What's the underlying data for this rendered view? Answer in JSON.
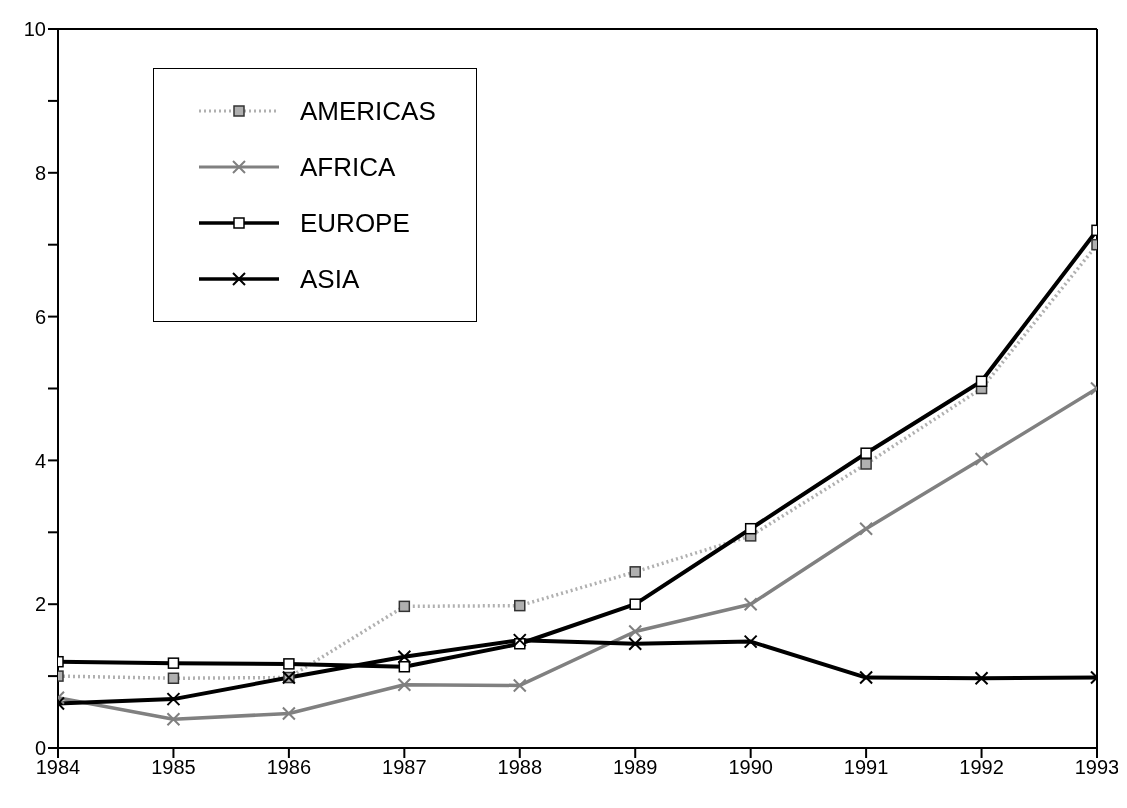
{
  "chart_data": {
    "type": "line",
    "x": [
      1984,
      1985,
      1986,
      1987,
      1988,
      1989,
      1990,
      1991,
      1992,
      1993
    ],
    "series": [
      {
        "name": "AMERICAS",
        "color": "#b0b0b0",
        "marker": "square",
        "line_style": "dotted",
        "values": [
          1.0,
          0.97,
          0.98,
          1.97,
          1.98,
          2.45,
          2.95,
          3.95,
          5.0,
          7.0
        ]
      },
      {
        "name": "AFRICA",
        "color": "#808080",
        "marker": "cross",
        "values": [
          0.7,
          0.4,
          0.48,
          0.88,
          0.87,
          1.62,
          2.0,
          3.05,
          4.02,
          5.0
        ]
      },
      {
        "name": "EUROPE",
        "color": "#000000",
        "marker": "square",
        "values": [
          1.2,
          1.18,
          1.17,
          1.13,
          1.45,
          2.0,
          3.05,
          4.1,
          5.1,
          7.2
        ]
      },
      {
        "name": "ASIA",
        "color": "#000000",
        "marker": "cross",
        "values": [
          0.62,
          0.68,
          0.98,
          1.27,
          1.5,
          1.45,
          1.48,
          0.98,
          0.97,
          0.98
        ]
      }
    ],
    "xlim": [
      1984,
      1993
    ],
    "xticks": [
      1984,
      1985,
      1986,
      1987,
      1988,
      1989,
      1990,
      1991,
      1992,
      1993
    ],
    "ylim": [
      0,
      10
    ],
    "yticks": [
      0,
      {
        "value": 1,
        "label": null
      },
      2,
      {
        "value": 3,
        "label": null
      },
      4,
      {
        "value": 5,
        "label": null
      },
      6,
      {
        "value": 7,
        "label": null
      },
      8,
      {
        "value": 9,
        "label": null
      },
      10
    ],
    "grid": false,
    "legend": "top left"
  }
}
